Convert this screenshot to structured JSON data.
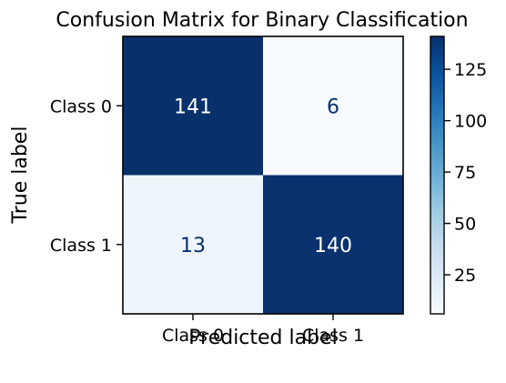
{
  "chart_data": {
    "type": "heatmap",
    "title": "Confusion Matrix for Binary Classification",
    "xlabel": "Predicted label",
    "ylabel": "True label",
    "x_categories": [
      "Class 0",
      "Class 1"
    ],
    "y_categories": [
      "Class 0",
      "Class 1"
    ],
    "values": [
      [
        141,
        6
      ],
      [
        13,
        140
      ]
    ],
    "colormap": "Blues",
    "colorbar": {
      "range": [
        6,
        141
      ],
      "ticks": [
        25,
        50,
        75,
        100,
        125
      ],
      "tick_labels": [
        "25",
        "50",
        "75",
        "100",
        "125"
      ]
    },
    "colors": {
      "low": "#f7fbff",
      "high": "#08306b",
      "text_dark": "#08306b",
      "text_light": "#ffffff"
    }
  }
}
